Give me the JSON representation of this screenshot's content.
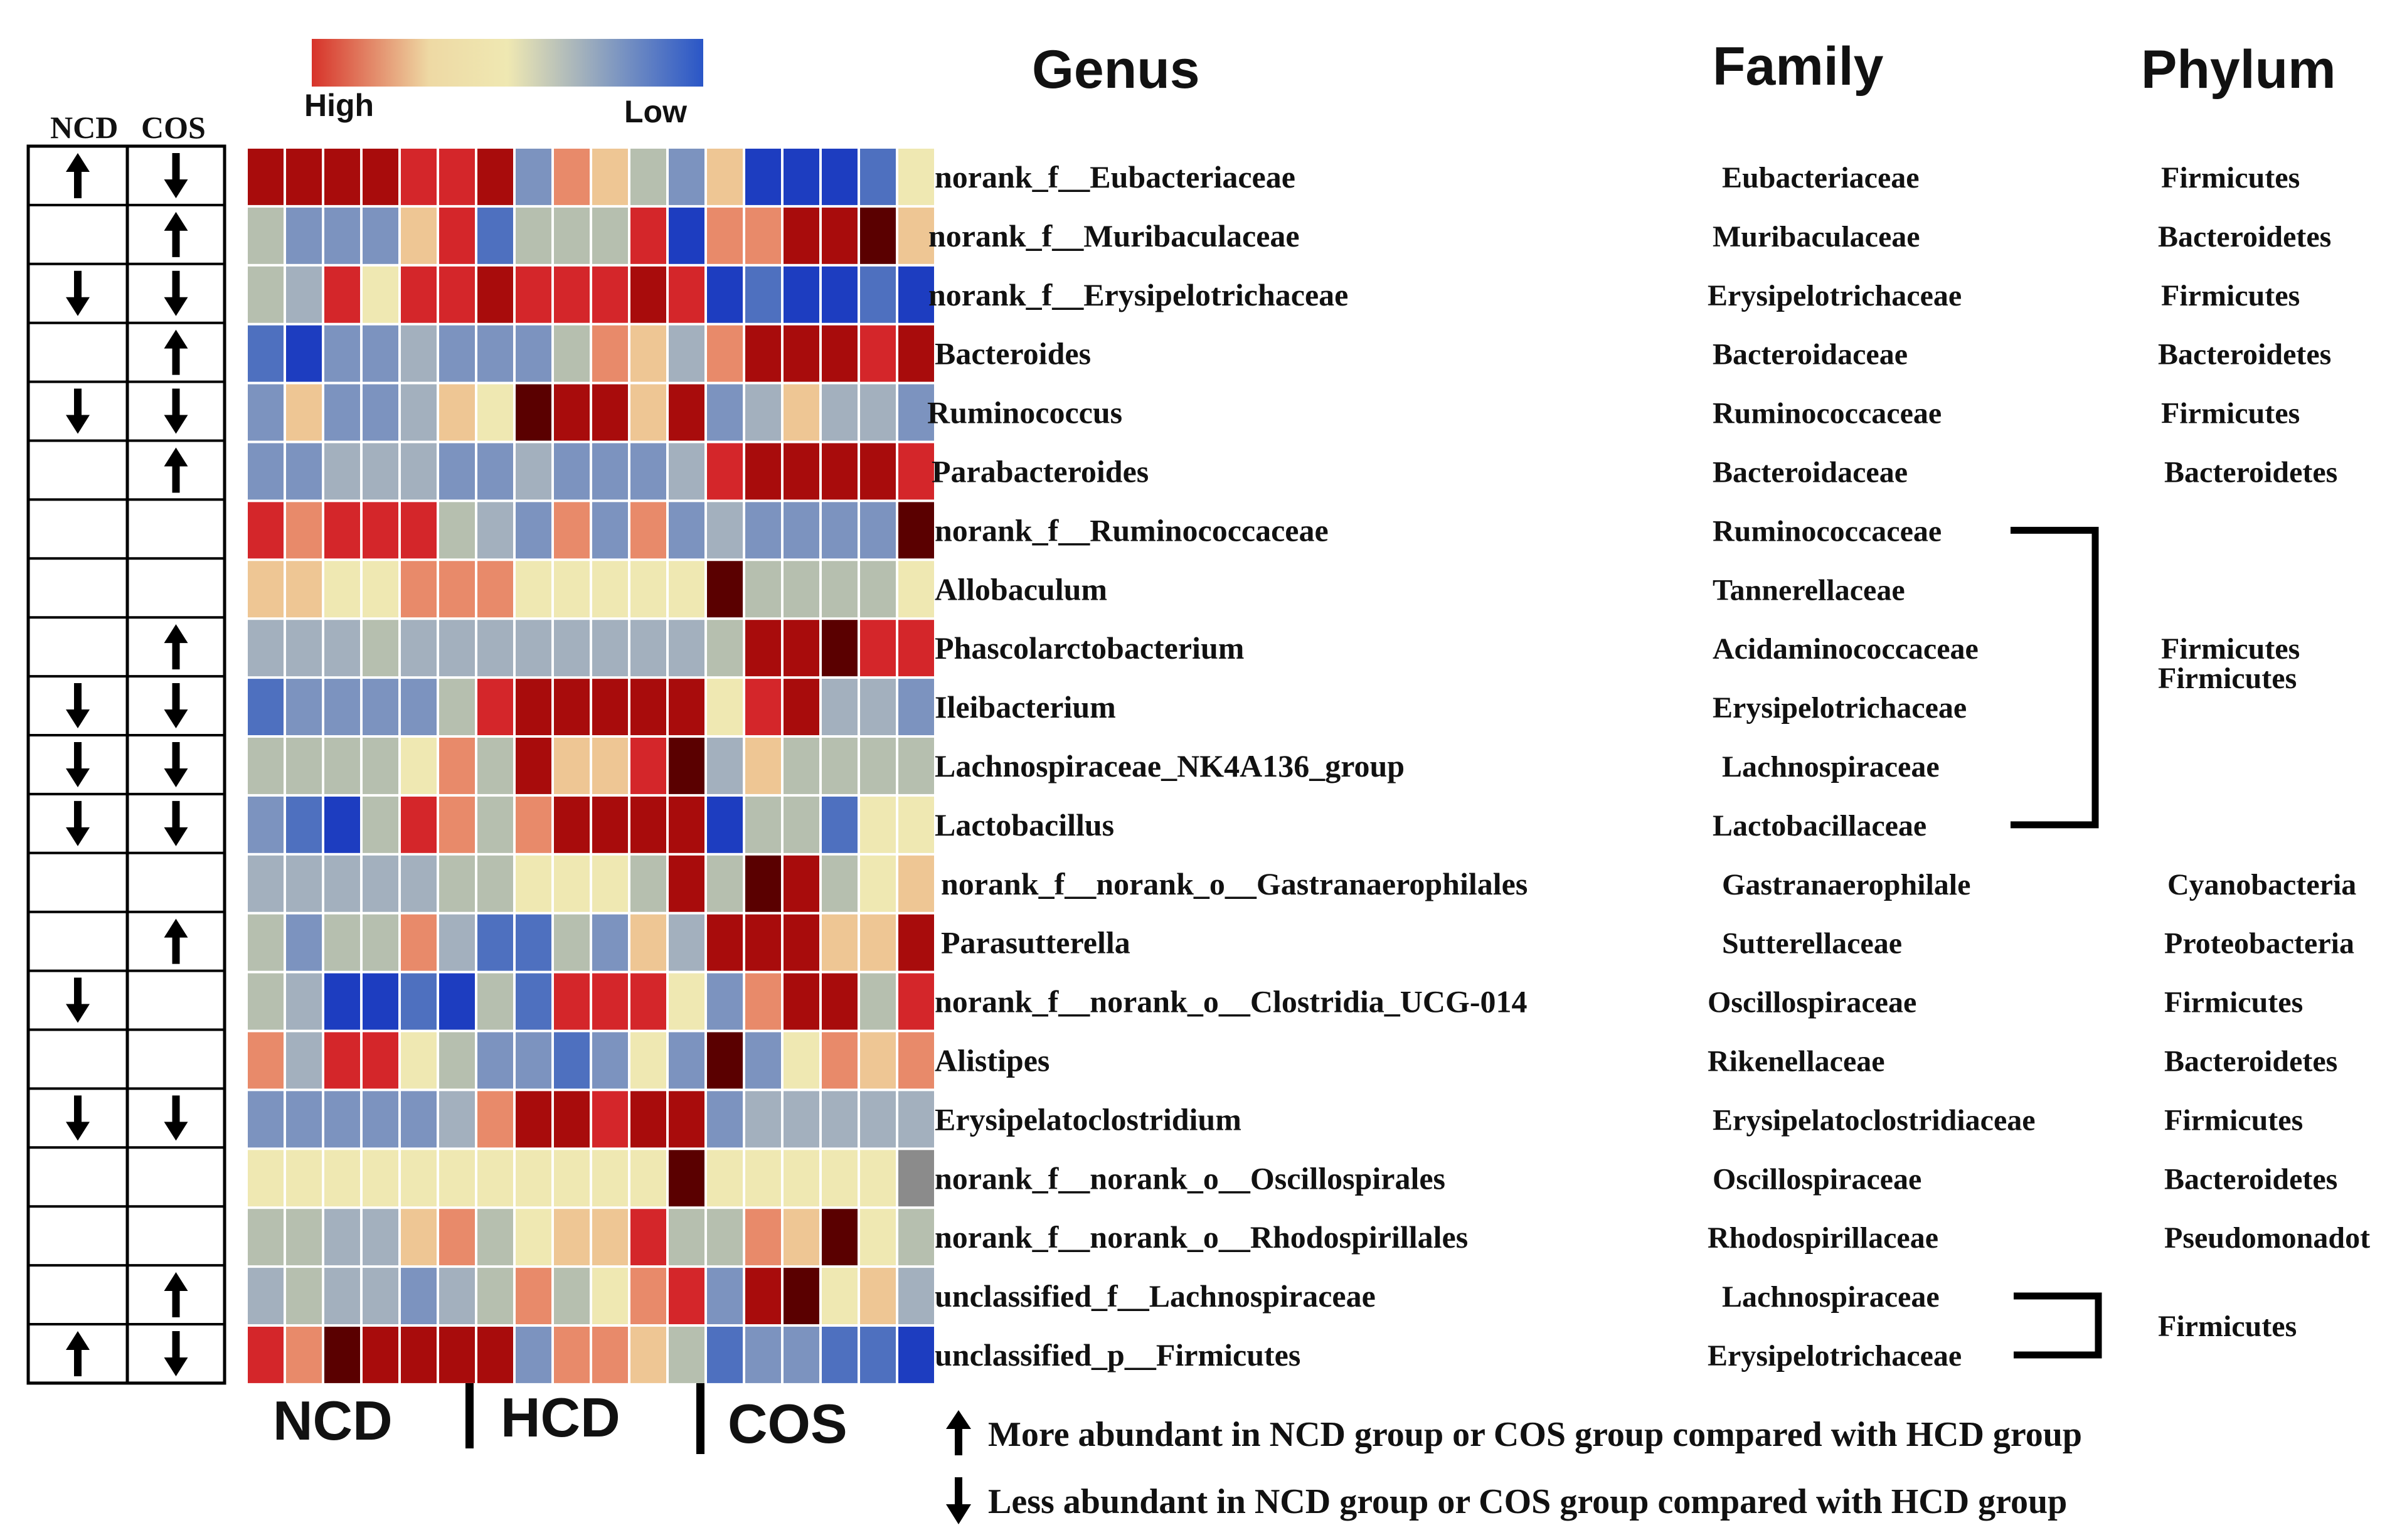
{
  "chart_data": {
    "type": "heatmap",
    "color_scale": {
      "high_label": "High",
      "low_label": "Low",
      "colors": [
        "#d7332a",
        "#eed9a4",
        "#efe8b2",
        "#7e97c1",
        "#2a56c7"
      ]
    },
    "palette": {
      "5": "#5a0000",
      "4": "#a80c0c",
      "3": "#d4262a",
      "2": "#e88a6a",
      "1": "#eec694",
      "0": "#efe8b2",
      "-1": "#b6bfaf",
      "-2": "#a3b0be",
      "-3": "#7c93bf",
      "-4": "#4e70bf",
      "-5": "#1d3dc0",
      "g": "#8b8b8b"
    },
    "headers": {
      "genus": "Genus",
      "family": "Family",
      "phylum": "Phylum"
    },
    "arrow_columns": [
      "NCD",
      "COS"
    ],
    "groups": [
      {
        "name": "NCD",
        "n": 6
      },
      {
        "name": "HCD",
        "n": 6
      },
      {
        "name": "COS",
        "n": 6
      }
    ],
    "rows": [
      {
        "genus": "norank_f__Eubacteriaceae",
        "family": "Eubacteriaceae",
        "phylum": "Firmicutes",
        "ncd": "up",
        "cos": "down",
        "values": [
          4,
          4,
          4,
          4,
          3,
          3,
          4,
          -3,
          2,
          1,
          -1,
          -3,
          1,
          -5,
          -5,
          -5,
          -4,
          0
        ]
      },
      {
        "genus": "norank_f__Muribaculaceae",
        "family": "Muribaculaceae",
        "phylum": "Bacteroidetes",
        "ncd": "",
        "cos": "up",
        "values": [
          -1,
          -3,
          -3,
          -3,
          1,
          3,
          -4,
          -1,
          -1,
          -1,
          3,
          -5,
          2,
          2,
          4,
          4,
          5,
          1
        ]
      },
      {
        "genus": "norank_f__Erysipelotrichaceae",
        "family": "Erysipelotrichaceae",
        "phylum": "Firmicutes",
        "ncd": "down",
        "cos": "down",
        "values": [
          -1,
          -2,
          3,
          0,
          3,
          3,
          4,
          3,
          3,
          3,
          4,
          3,
          -5,
          -4,
          -5,
          -5,
          -4,
          -5
        ]
      },
      {
        "genus": "Bacteroides",
        "family": "Bacteroidaceae",
        "phylum": "Bacteroidetes",
        "ncd": "",
        "cos": "up",
        "values": [
          -4,
          -5,
          -3,
          -3,
          -2,
          -3,
          -3,
          -3,
          -1,
          2,
          1,
          -2,
          2,
          4,
          4,
          4,
          3,
          4
        ]
      },
      {
        "genus": "Ruminococcus",
        "family": "Ruminococcaceae",
        "phylum": "Firmicutes",
        "ncd": "down",
        "cos": "down",
        "values": [
          -3,
          1,
          -3,
          -3,
          -2,
          1,
          0,
          5,
          4,
          4,
          1,
          4,
          -3,
          -2,
          1,
          -2,
          -2,
          -3
        ]
      },
      {
        "genus": "Parabacteroides",
        "family": "Bacteroidaceae",
        "phylum": "Bacteroidetes",
        "ncd": "",
        "cos": "up",
        "values": [
          -3,
          -3,
          -2,
          -2,
          -2,
          -3,
          -3,
          -2,
          -3,
          -3,
          -3,
          -2,
          3,
          4,
          4,
          4,
          4,
          3
        ]
      },
      {
        "genus": "norank_f__Ruminococcaceae",
        "family": "Ruminococcaceae",
        "phylum": "",
        "ncd": "",
        "cos": "",
        "values": [
          3,
          2,
          3,
          3,
          3,
          -1,
          -2,
          -3,
          2,
          -3,
          2,
          -3,
          -2,
          -3,
          -3,
          -3,
          -3,
          5
        ]
      },
      {
        "genus": "Allobaculum",
        "family": "Tannerellaceae",
        "phylum": "",
        "ncd": "",
        "cos": "",
        "values": [
          1,
          1,
          0,
          0,
          2,
          2,
          2,
          0,
          0,
          0,
          0,
          0,
          5,
          -1,
          -1,
          -1,
          -1,
          0
        ]
      },
      {
        "genus": "Phascolarctobacterium",
        "family": "Acidaminococcaceae",
        "phylum": "Firmicutes",
        "ncd": "",
        "cos": "up",
        "values": [
          -2,
          -2,
          -2,
          -1,
          -2,
          -2,
          -2,
          -2,
          -2,
          -2,
          -2,
          -2,
          -1,
          4,
          4,
          5,
          3,
          3
        ]
      },
      {
        "genus": "Ileibacterium",
        "family": "Erysipelotrichaceae",
        "phylum": "",
        "ncd": "down",
        "cos": "down",
        "values": [
          -4,
          -3,
          -3,
          -3,
          -3,
          -1,
          3,
          4,
          4,
          4,
          4,
          4,
          0,
          3,
          4,
          -2,
          -2,
          -3
        ]
      },
      {
        "genus": "Lachnospiraceae_NK4A136_group",
        "family": "Lachnospiraceae",
        "phylum": "",
        "ncd": "down",
        "cos": "down",
        "values": [
          -1,
          -1,
          -1,
          -1,
          0,
          2,
          -1,
          4,
          1,
          1,
          3,
          5,
          -2,
          1,
          -1,
          -1,
          -1,
          -1
        ]
      },
      {
        "genus": "Lactobacillus",
        "family": "Lactobacillaceae",
        "phylum": "",
        "ncd": "down",
        "cos": "down",
        "values": [
          -3,
          -4,
          -5,
          -1,
          3,
          2,
          -1,
          2,
          4,
          4,
          4,
          4,
          -5,
          -1,
          -1,
          -4,
          0,
          0
        ]
      },
      {
        "genus": "norank_f__norank_o__Gastranaerophilales",
        "family": "Gastranaerophilale",
        "phylum": "Cyanobacteria",
        "ncd": "",
        "cos": "",
        "values": [
          -2,
          -2,
          -2,
          -2,
          -2,
          -1,
          -1,
          0,
          0,
          0,
          -1,
          4,
          -1,
          5,
          4,
          -1,
          0,
          1
        ]
      },
      {
        "genus": "Parasutterella",
        "family": "Sutterellaceae",
        "phylum": "Proteobacteria",
        "ncd": "",
        "cos": "up",
        "values": [
          -1,
          -3,
          -1,
          -1,
          2,
          -2,
          -4,
          -4,
          -1,
          -3,
          1,
          -2,
          4,
          4,
          4,
          1,
          1,
          4
        ]
      },
      {
        "genus": "norank_f__norank_o__Clostridia_UCG-014",
        "family": "Oscillospiraceae",
        "phylum": "Firmicutes",
        "ncd": "down",
        "cos": "",
        "values": [
          -1,
          -2,
          -5,
          -5,
          -4,
          -5,
          -1,
          -4,
          3,
          3,
          3,
          0,
          -3,
          2,
          4,
          4,
          -1,
          3
        ]
      },
      {
        "genus": "Alistipes",
        "family": "Rikenellaceae",
        "phylum": "Bacteroidetes",
        "ncd": "",
        "cos": "",
        "values": [
          2,
          -2,
          3,
          3,
          0,
          -1,
          -3,
          -3,
          -4,
          -3,
          0,
          -3,
          5,
          -3,
          0,
          2,
          1,
          2
        ]
      },
      {
        "genus": "Erysipelatoclostridium",
        "family": "Erysipelatoclostridiaceae",
        "phylum": "Firmicutes",
        "ncd": "down",
        "cos": "down",
        "values": [
          -3,
          -3,
          -3,
          -3,
          -3,
          -2,
          2,
          4,
          4,
          3,
          4,
          4,
          -3,
          -2,
          -2,
          -2,
          -2,
          -2
        ]
      },
      {
        "genus": "norank_f__norank_o__Oscillospirales",
        "family": "Oscillospiraceae",
        "phylum": "Bacteroidetes",
        "ncd": "",
        "cos": "",
        "values": [
          0,
          0,
          0,
          0,
          0,
          0,
          0,
          0,
          0,
          0,
          0,
          5,
          0,
          0,
          0,
          0,
          0,
          "g"
        ]
      },
      {
        "genus": "norank_f__norank_o__Rhodospirillales",
        "family": "Rhodospirillaceae",
        "phylum": "Pseudomonadot",
        "ncd": "",
        "cos": "",
        "values": [
          -1,
          -1,
          -2,
          -2,
          1,
          2,
          -1,
          0,
          1,
          1,
          3,
          -1,
          -1,
          2,
          1,
          5,
          0,
          -1
        ]
      },
      {
        "genus": "unclassified_f__Lachnospiraceae",
        "family": "Lachnospiraceae",
        "phylum": "",
        "ncd": "",
        "cos": "up",
        "values": [
          -2,
          -1,
          -2,
          -2,
          -3,
          -2,
          -1,
          2,
          -1,
          0,
          2,
          3,
          -3,
          4,
          5,
          0,
          1,
          -2
        ]
      },
      {
        "genus": "unclassified_p__Firmicutes",
        "family": "Erysipelotrichaceae",
        "phylum": "",
        "ncd": "up",
        "cos": "down",
        "values": [
          3,
          2,
          5,
          4,
          4,
          4,
          4,
          -3,
          2,
          2,
          1,
          -1,
          -4,
          -3,
          -3,
          -4,
          -4,
          -5
        ]
      }
    ],
    "brackets": [
      {
        "from_row": 6,
        "to_row": 11,
        "phylum": "Firmicutes"
      },
      {
        "from_row": 19,
        "to_row": 20,
        "phylum": "Firmicutes"
      }
    ],
    "legend": [
      {
        "symbol": "up",
        "text": "More abundant  in NCD group  or  COS group  compared  with  HCD group"
      },
      {
        "symbol": "down",
        "text": "Less abundant  in NCD group  or  COS group  compared  with  HCD group"
      }
    ]
  }
}
